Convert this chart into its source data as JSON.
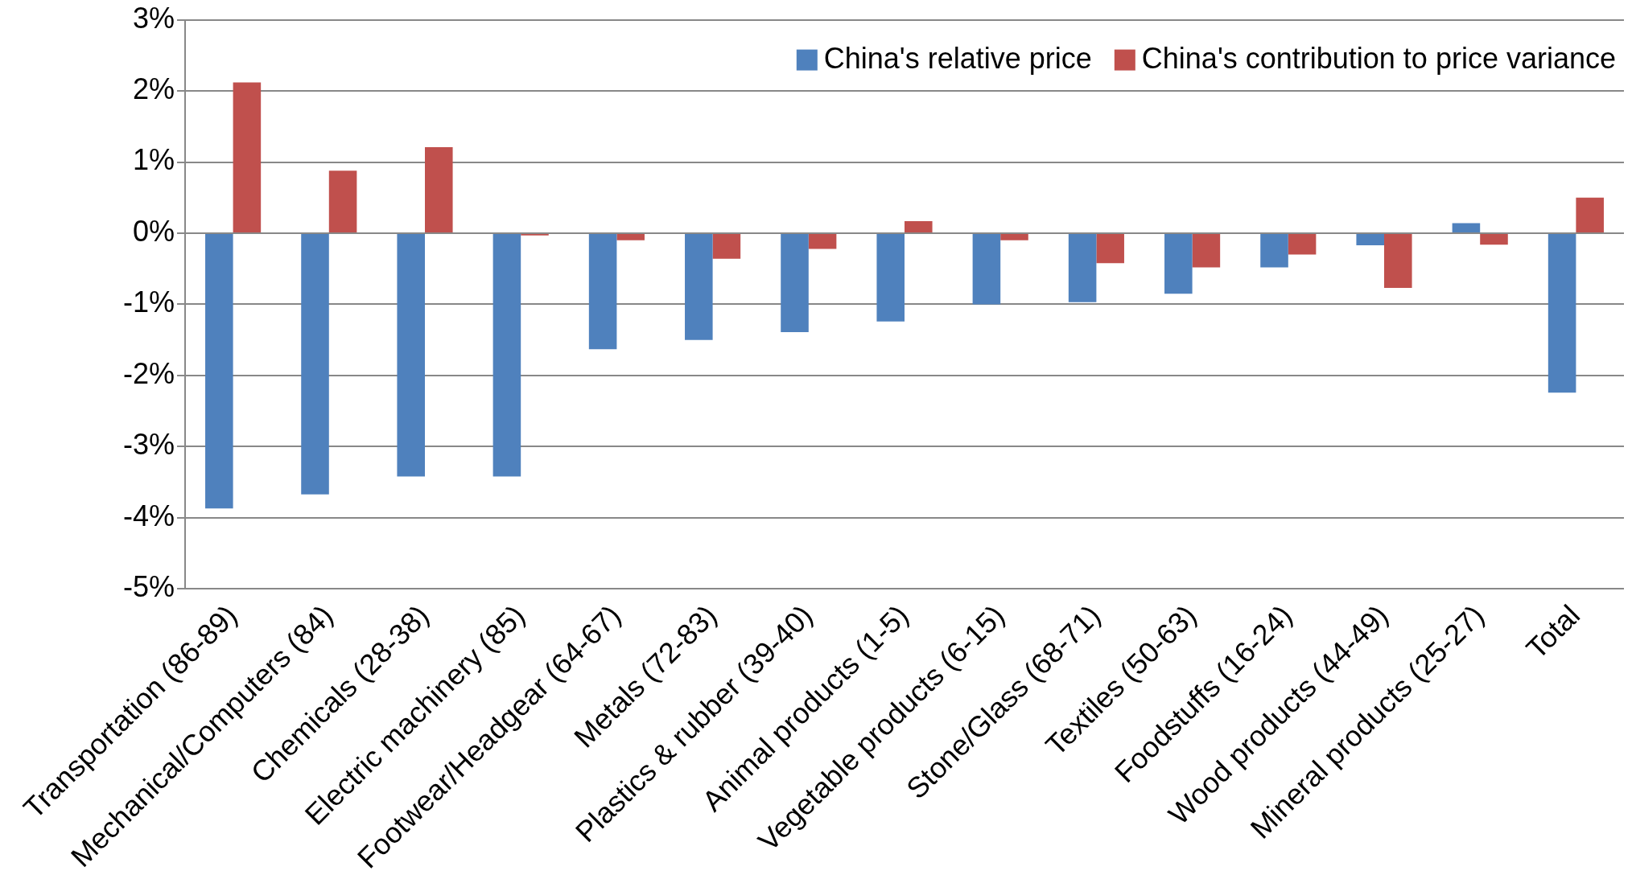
{
  "chart_data": {
    "type": "bar",
    "categories": [
      "Transportation (86-89)",
      "Mechanical/Computers (84)",
      "Chemicals (28-38)",
      "Electric machinery (85)",
      "Footwear/Headgear (64-67)",
      "Metals (72-83)",
      "Plastics & rubber (39-40)",
      "Animal products (1-5)",
      "Vegetable products (6-15)",
      "Stone/Glass (68-71)",
      "Textiles (50-63)",
      "Foodstuffs (16-24)",
      "Wood products (44-49)",
      "Mineral products (25-27)",
      "Total"
    ],
    "series": [
      {
        "name": "China's relative price",
        "color": "#4f81bd",
        "values": [
          -3.87,
          -3.67,
          -3.42,
          -3.42,
          -1.63,
          -1.5,
          -1.39,
          -1.24,
          -1.0,
          -0.97,
          -0.85,
          -0.48,
          -0.17,
          0.14,
          -2.24
        ]
      },
      {
        "name": "China's contribution to price variance",
        "color": "#c0504d",
        "values": [
          2.12,
          0.88,
          1.21,
          -0.03,
          -0.1,
          -0.36,
          -0.22,
          0.17,
          -0.1,
          -0.42,
          -0.48,
          -0.3,
          -0.77,
          -0.16,
          0.5
        ]
      }
    ],
    "ylim": [
      -5,
      3
    ],
    "yticks": [
      {
        "value": -5,
        "label": "-5%"
      },
      {
        "value": -4,
        "label": "-4%"
      },
      {
        "value": -3,
        "label": "-3%"
      },
      {
        "value": -2,
        "label": "-2%"
      },
      {
        "value": -1,
        "label": "-1%"
      },
      {
        "value": 0,
        "label": "0%"
      },
      {
        "value": 1,
        "label": "1%"
      },
      {
        "value": 2,
        "label": "2%"
      },
      {
        "value": 3,
        "label": "3%"
      }
    ],
    "grid": "y",
    "legend": "top right"
  }
}
